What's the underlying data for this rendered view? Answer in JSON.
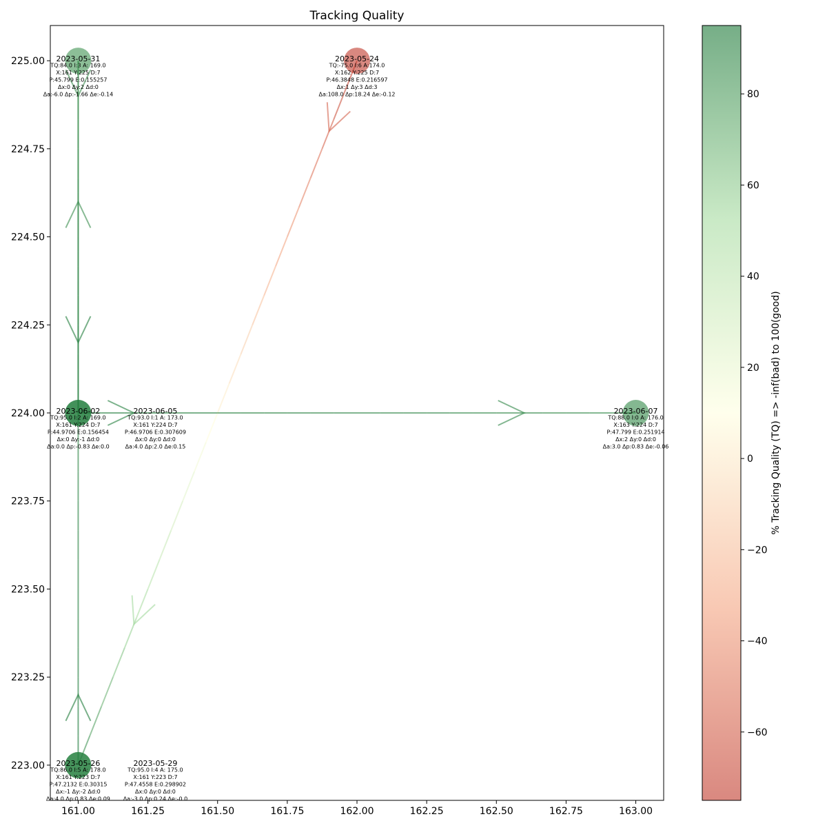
{
  "chart_data": {
    "type": "scatter",
    "title": "Tracking Quality",
    "xlabel": "",
    "ylabel": "",
    "xlim": [
      160.9,
      163.1
    ],
    "ylim": [
      222.9,
      225.1
    ],
    "grid": false,
    "x_ticks": [
      "161.00",
      "161.25",
      "161.50",
      "161.75",
      "162.00",
      "162.25",
      "162.50",
      "162.75",
      "163.00"
    ],
    "y_ticks": [
      "223.00",
      "223.25",
      "223.50",
      "223.75",
      "224.00",
      "224.25",
      "224.50",
      "224.75",
      "225.00"
    ],
    "colorbar": {
      "label": "% Tracking Quality (TQ) => -inf(bad) to 100(good)",
      "range": [
        -75,
        95
      ],
      "ticks": [
        "−60",
        "−40",
        "−20",
        "0",
        "20",
        "40",
        "60",
        "80"
      ],
      "colors": [
        "#c0392b",
        "#f4a582",
        "#ffffe0",
        "#a6dba0",
        "#1b7837"
      ]
    },
    "points": [
      {
        "date": "2023-05-24",
        "x": 162,
        "y": 225,
        "tq": -75,
        "lines": [
          "TQ:-75.0 I:6 A:174.0",
          "X:162 Y:225 D:7",
          "P:46.3848 E:0.216597",
          "Δx:1 Δy:3 Δd:3",
          "Δa:108.0 Δp:18.24 Δe:-0.12"
        ]
      },
      {
        "date": "2023-05-26",
        "x": 161,
        "y": 223,
        "tq": 86,
        "lines": [
          "TQ:86.0 I:5 A: 178.0",
          "X:161 Y:223 D:7",
          "P:47.2132 E:0.30315",
          "Δx:-1 Δy:-2 Δd:0",
          "Δa:4.0 Δp:0.83 Δe:0.09"
        ]
      },
      {
        "date": "2023-05-29",
        "x": 161,
        "y": 223,
        "tq": 95,
        "lines": [
          "TQ:95.0 I:4 A: 175.0",
          "X:161 Y:223 D:7",
          "P:47.4558 E:0.298902",
          "Δx:0 Δy:0 Δd:0",
          "Δa:-3.0 Δp:0.24 Δe:-0.0"
        ]
      },
      {
        "date": "2023-05-31",
        "x": 161,
        "y": 225,
        "tq": 84,
        "lines": [
          "TQ:84.0 I:3 A: 169.0",
          "X:161 Y:225 D:7",
          "P:45.799 E:0.155257",
          "Δx:0 Δy:2 Δd:0",
          "Δa:-6.0 Δp:-1.66 Δe:-0.14"
        ]
      },
      {
        "date": "2023-06-02",
        "x": 161,
        "y": 224,
        "tq": 95,
        "lines": [
          "TQ:95.0 I:2 A: 169.0",
          "X:161 Y:224 D:7",
          "P:44.9706 E:0.156454",
          "Δx:0 Δy:-1 Δd:0",
          "Δa:0.0 Δp:-0.83 Δe:0.0"
        ]
      },
      {
        "date": "2023-06-05",
        "x": 161,
        "y": 224,
        "tq": 93,
        "lines": [
          "TQ:93.0 I:1 A: 173.0",
          "X:161 Y:224 D:7",
          "P:46.9706 E:0.307609",
          "Δx:0 Δy:0 Δd:0",
          "Δa:4.0 Δp:2.0 Δe:0.15"
        ]
      },
      {
        "date": "2023-06-07",
        "x": 163,
        "y": 224,
        "tq": 88,
        "lines": [
          "TQ:88.0 I:0 A: 176.0",
          "X:163 Y:224 D:7",
          "P:47.799 E:0.251914",
          "Δx:2 Δy:0 Δd:0",
          "Δa:3.0 Δp:0.83 Δe:-0.06"
        ]
      }
    ]
  }
}
